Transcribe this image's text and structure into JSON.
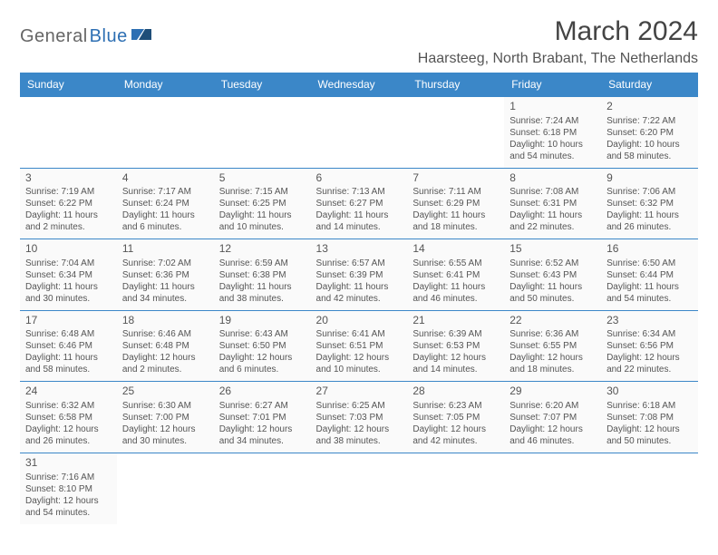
{
  "logo": {
    "part1": "General",
    "part2": "Blue"
  },
  "title": "March 2024",
  "location": "Haarsteeg, North Brabant, The Netherlands",
  "colors": {
    "header_bg": "#3b87c8",
    "header_text": "#ffffff",
    "border": "#3b87c8",
    "cell_bg": "#fafafa",
    "text": "#555555",
    "logo_gray": "#666666",
    "logo_blue": "#2d6fb3"
  },
  "weekdays": [
    "Sunday",
    "Monday",
    "Tuesday",
    "Wednesday",
    "Thursday",
    "Friday",
    "Saturday"
  ],
  "weeks": [
    [
      null,
      null,
      null,
      null,
      null,
      {
        "n": "1",
        "sr": "7:24 AM",
        "ss": "6:18 PM",
        "dl": "10 hours and 54 minutes."
      },
      {
        "n": "2",
        "sr": "7:22 AM",
        "ss": "6:20 PM",
        "dl": "10 hours and 58 minutes."
      }
    ],
    [
      {
        "n": "3",
        "sr": "7:19 AM",
        "ss": "6:22 PM",
        "dl": "11 hours and 2 minutes."
      },
      {
        "n": "4",
        "sr": "7:17 AM",
        "ss": "6:24 PM",
        "dl": "11 hours and 6 minutes."
      },
      {
        "n": "5",
        "sr": "7:15 AM",
        "ss": "6:25 PM",
        "dl": "11 hours and 10 minutes."
      },
      {
        "n": "6",
        "sr": "7:13 AM",
        "ss": "6:27 PM",
        "dl": "11 hours and 14 minutes."
      },
      {
        "n": "7",
        "sr": "7:11 AM",
        "ss": "6:29 PM",
        "dl": "11 hours and 18 minutes."
      },
      {
        "n": "8",
        "sr": "7:08 AM",
        "ss": "6:31 PM",
        "dl": "11 hours and 22 minutes."
      },
      {
        "n": "9",
        "sr": "7:06 AM",
        "ss": "6:32 PM",
        "dl": "11 hours and 26 minutes."
      }
    ],
    [
      {
        "n": "10",
        "sr": "7:04 AM",
        "ss": "6:34 PM",
        "dl": "11 hours and 30 minutes."
      },
      {
        "n": "11",
        "sr": "7:02 AM",
        "ss": "6:36 PM",
        "dl": "11 hours and 34 minutes."
      },
      {
        "n": "12",
        "sr": "6:59 AM",
        "ss": "6:38 PM",
        "dl": "11 hours and 38 minutes."
      },
      {
        "n": "13",
        "sr": "6:57 AM",
        "ss": "6:39 PM",
        "dl": "11 hours and 42 minutes."
      },
      {
        "n": "14",
        "sr": "6:55 AM",
        "ss": "6:41 PM",
        "dl": "11 hours and 46 minutes."
      },
      {
        "n": "15",
        "sr": "6:52 AM",
        "ss": "6:43 PM",
        "dl": "11 hours and 50 minutes."
      },
      {
        "n": "16",
        "sr": "6:50 AM",
        "ss": "6:44 PM",
        "dl": "11 hours and 54 minutes."
      }
    ],
    [
      {
        "n": "17",
        "sr": "6:48 AM",
        "ss": "6:46 PM",
        "dl": "11 hours and 58 minutes."
      },
      {
        "n": "18",
        "sr": "6:46 AM",
        "ss": "6:48 PM",
        "dl": "12 hours and 2 minutes."
      },
      {
        "n": "19",
        "sr": "6:43 AM",
        "ss": "6:50 PM",
        "dl": "12 hours and 6 minutes."
      },
      {
        "n": "20",
        "sr": "6:41 AM",
        "ss": "6:51 PM",
        "dl": "12 hours and 10 minutes."
      },
      {
        "n": "21",
        "sr": "6:39 AM",
        "ss": "6:53 PM",
        "dl": "12 hours and 14 minutes."
      },
      {
        "n": "22",
        "sr": "6:36 AM",
        "ss": "6:55 PM",
        "dl": "12 hours and 18 minutes."
      },
      {
        "n": "23",
        "sr": "6:34 AM",
        "ss": "6:56 PM",
        "dl": "12 hours and 22 minutes."
      }
    ],
    [
      {
        "n": "24",
        "sr": "6:32 AM",
        "ss": "6:58 PM",
        "dl": "12 hours and 26 minutes."
      },
      {
        "n": "25",
        "sr": "6:30 AM",
        "ss": "7:00 PM",
        "dl": "12 hours and 30 minutes."
      },
      {
        "n": "26",
        "sr": "6:27 AM",
        "ss": "7:01 PM",
        "dl": "12 hours and 34 minutes."
      },
      {
        "n": "27",
        "sr": "6:25 AM",
        "ss": "7:03 PM",
        "dl": "12 hours and 38 minutes."
      },
      {
        "n": "28",
        "sr": "6:23 AM",
        "ss": "7:05 PM",
        "dl": "12 hours and 42 minutes."
      },
      {
        "n": "29",
        "sr": "6:20 AM",
        "ss": "7:07 PM",
        "dl": "12 hours and 46 minutes."
      },
      {
        "n": "30",
        "sr": "6:18 AM",
        "ss": "7:08 PM",
        "dl": "12 hours and 50 minutes."
      }
    ],
    [
      {
        "n": "31",
        "sr": "7:16 AM",
        "ss": "8:10 PM",
        "dl": "12 hours and 54 minutes."
      },
      null,
      null,
      null,
      null,
      null,
      null
    ]
  ],
  "labels": {
    "sunrise": "Sunrise: ",
    "sunset": "Sunset: ",
    "daylight": "Daylight: "
  }
}
